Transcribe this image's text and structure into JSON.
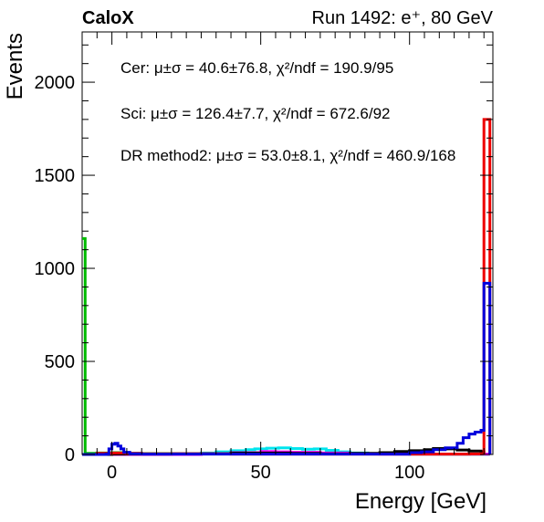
{
  "chart_data": {
    "type": "line",
    "header_left": "CaloX",
    "header_right": "Run 1492: e⁺, 80 GeV",
    "xlabel": "Energy [GeV]",
    "ylabel": "Events",
    "xlim": [
      -10,
      128
    ],
    "ylim": [
      0,
      2270
    ],
    "xticks": [
      0,
      50,
      100
    ],
    "yticks": [
      0,
      500,
      1000,
      1500,
      2000
    ],
    "grid": false,
    "annotations": [
      "Cer: μ±σ = 40.6±76.8, χ²/ndf = 190.9/95",
      "Sci: μ±σ = 126.4±7.7, χ²/ndf = 672.6/92",
      "DR method2: μ±σ = 53.0±8.1, χ²/ndf = 460.9/168"
    ],
    "series": [
      {
        "color": "#00bb00",
        "points": [
          [
            -10,
            1160
          ],
          [
            -9,
            6
          ],
          [
            -5,
            8
          ],
          [
            0,
            10
          ],
          [
            5,
            6
          ],
          [
            10,
            5
          ],
          [
            20,
            4
          ],
          [
            40,
            5
          ],
          [
            60,
            3
          ],
          [
            80,
            3
          ],
          [
            100,
            2
          ],
          [
            120,
            2
          ],
          [
            127,
            0
          ]
        ]
      },
      {
        "color": "#00e5ee",
        "points": [
          [
            -10,
            0
          ],
          [
            20,
            3
          ],
          [
            30,
            8
          ],
          [
            35,
            14
          ],
          [
            40,
            20
          ],
          [
            45,
            26
          ],
          [
            48,
            30
          ],
          [
            52,
            34
          ],
          [
            56,
            36
          ],
          [
            60,
            32
          ],
          [
            64,
            28
          ],
          [
            68,
            30
          ],
          [
            72,
            22
          ],
          [
            76,
            14
          ],
          [
            80,
            8
          ],
          [
            86,
            4
          ],
          [
            95,
            2
          ],
          [
            110,
            1
          ],
          [
            127,
            0
          ]
        ]
      },
      {
        "color": "#ff00ff",
        "points": [
          [
            -10,
            0
          ],
          [
            30,
            4
          ],
          [
            40,
            10
          ],
          [
            50,
            16
          ],
          [
            55,
            14
          ],
          [
            60,
            12
          ],
          [
            70,
            8
          ],
          [
            80,
            4
          ],
          [
            90,
            2
          ],
          [
            127,
            0
          ]
        ]
      },
      {
        "color": "#000000",
        "points": [
          [
            -10,
            0
          ],
          [
            0,
            2
          ],
          [
            20,
            4
          ],
          [
            40,
            8
          ],
          [
            60,
            6
          ],
          [
            70,
            4
          ],
          [
            80,
            6
          ],
          [
            90,
            10
          ],
          [
            95,
            16
          ],
          [
            100,
            20
          ],
          [
            105,
            26
          ],
          [
            108,
            32
          ],
          [
            112,
            30
          ],
          [
            116,
            24
          ],
          [
            120,
            18
          ],
          [
            124,
            14
          ],
          [
            125,
            0
          ]
        ]
      },
      {
        "color": "#ee0000",
        "points": [
          [
            -10,
            0
          ],
          [
            -5,
            6
          ],
          [
            0,
            8
          ],
          [
            5,
            6
          ],
          [
            10,
            4
          ],
          [
            20,
            4
          ],
          [
            40,
            2
          ],
          [
            60,
            2
          ],
          [
            80,
            2
          ],
          [
            100,
            2
          ],
          [
            120,
            3
          ],
          [
            124,
            4
          ],
          [
            125,
            0
          ],
          [
            125,
            1800
          ],
          [
            127,
            1800
          ],
          [
            127,
            0
          ]
        ]
      },
      {
        "color": "#0000dd",
        "points": [
          [
            -10,
            0
          ],
          [
            -2,
            2
          ],
          [
            -1,
            30
          ],
          [
            0,
            55
          ],
          [
            1,
            60
          ],
          [
            2,
            45
          ],
          [
            3,
            30
          ],
          [
            4,
            12
          ],
          [
            6,
            4
          ],
          [
            10,
            2
          ],
          [
            30,
            2
          ],
          [
            60,
            2
          ],
          [
            90,
            2
          ],
          [
            100,
            10
          ],
          [
            104,
            14
          ],
          [
            108,
            26
          ],
          [
            112,
            36
          ],
          [
            116,
            60
          ],
          [
            118,
            90
          ],
          [
            120,
            110
          ],
          [
            122,
            120
          ],
          [
            124,
            130
          ],
          [
            125,
            920
          ],
          [
            127,
            920
          ],
          [
            127,
            0
          ]
        ]
      }
    ]
  }
}
